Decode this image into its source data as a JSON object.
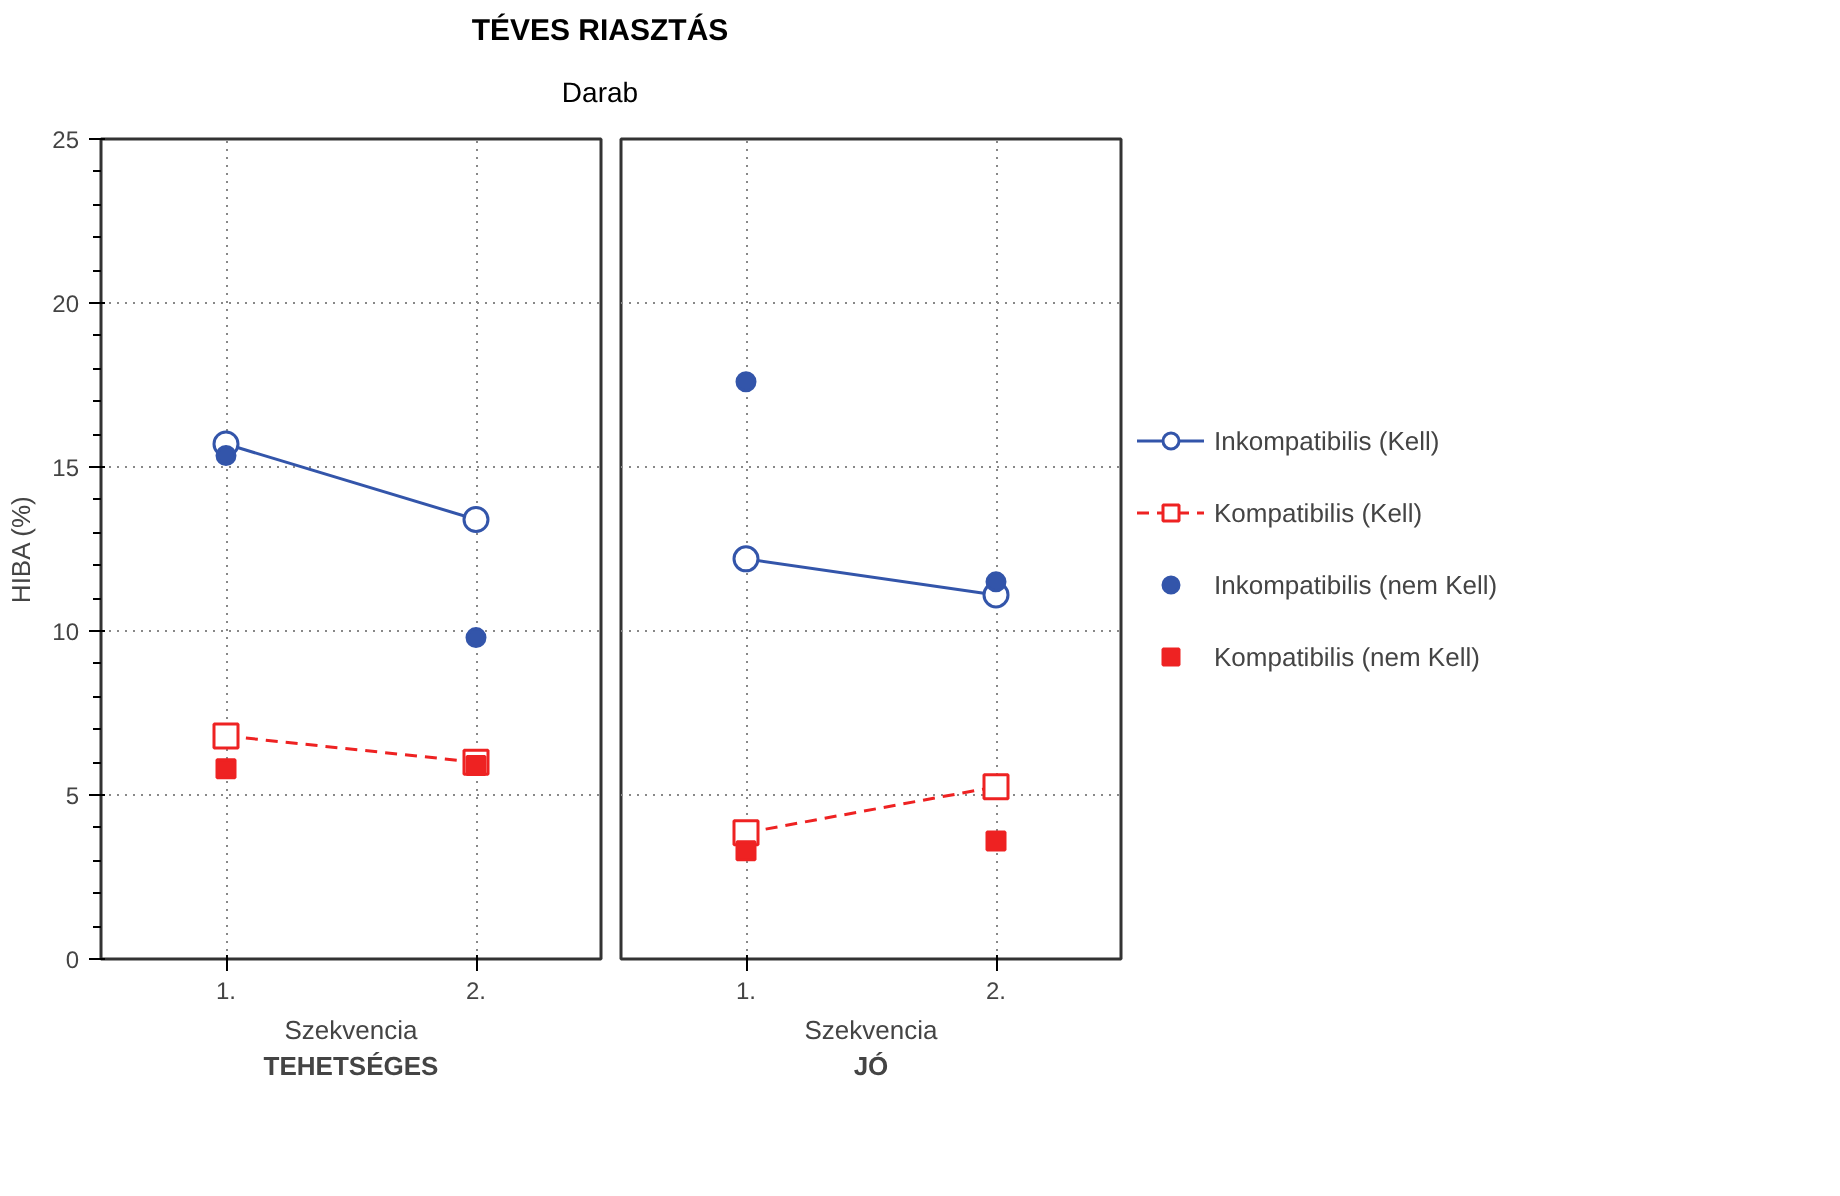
{
  "chart_data": [
    {
      "type": "line",
      "title": "TÉVES RIASZTÁS",
      "subtitle": "Darab",
      "xlabel": "Szekvencia",
      "annotations": [
        "TEHETSÉGES"
      ],
      "ylabel": "HIBA (%)",
      "categories": [
        "1.",
        "2."
      ],
      "ylim": [
        0,
        25
      ],
      "yticks": [
        0,
        5,
        10,
        15,
        20,
        25
      ],
      "grid": true,
      "series": [
        {
          "marker": "circle",
          "line_style": "solid",
          "color": "#3355aa",
          "values": [
            15.7,
            13.4
          ]
        },
        {
          "marker": "square",
          "line_style": "dashed",
          "color": "#ee2222",
          "values": [
            6.8,
            6.0
          ]
        },
        {
          "type": "scatter",
          "marker": "circle",
          "color": "#3355aa",
          "values": [
            15.35,
            9.8
          ]
        },
        {
          "type": "scatter",
          "marker": "square",
          "color": "#ee2222",
          "values": [
            5.8,
            5.9
          ]
        }
      ]
    },
    {
      "type": "line",
      "xlabel": "Szekvencia",
      "annotations": [
        "JÓ"
      ],
      "categories": [
        "1.",
        "2."
      ],
      "ylim": [
        0,
        25
      ],
      "yticks": [
        0,
        5,
        10,
        15,
        20,
        25
      ],
      "grid": true,
      "tick_labels": "x",
      "legend": "right",
      "series": [
        {
          "name": "Inkompatibilis (Kell)",
          "marker": "circle",
          "line_style": "solid",
          "color": "#3355aa",
          "values": [
            12.2,
            11.1
          ]
        },
        {
          "name": "Kompatibilis (Kell)",
          "marker": "square",
          "line_style": "dashed",
          "color": "#ee2222",
          "values": [
            3.85,
            5.25
          ]
        },
        {
          "name": "Inkompatibilis (nem Kell)",
          "type": "scatter",
          "marker": "circle",
          "color": "#3355aa",
          "values": [
            17.6,
            11.5
          ]
        },
        {
          "name": "Kompatibilis (nem Kell)",
          "type": "scatter",
          "marker": "square",
          "color": "#ee2222",
          "values": [
            3.3,
            3.6
          ]
        }
      ]
    }
  ]
}
